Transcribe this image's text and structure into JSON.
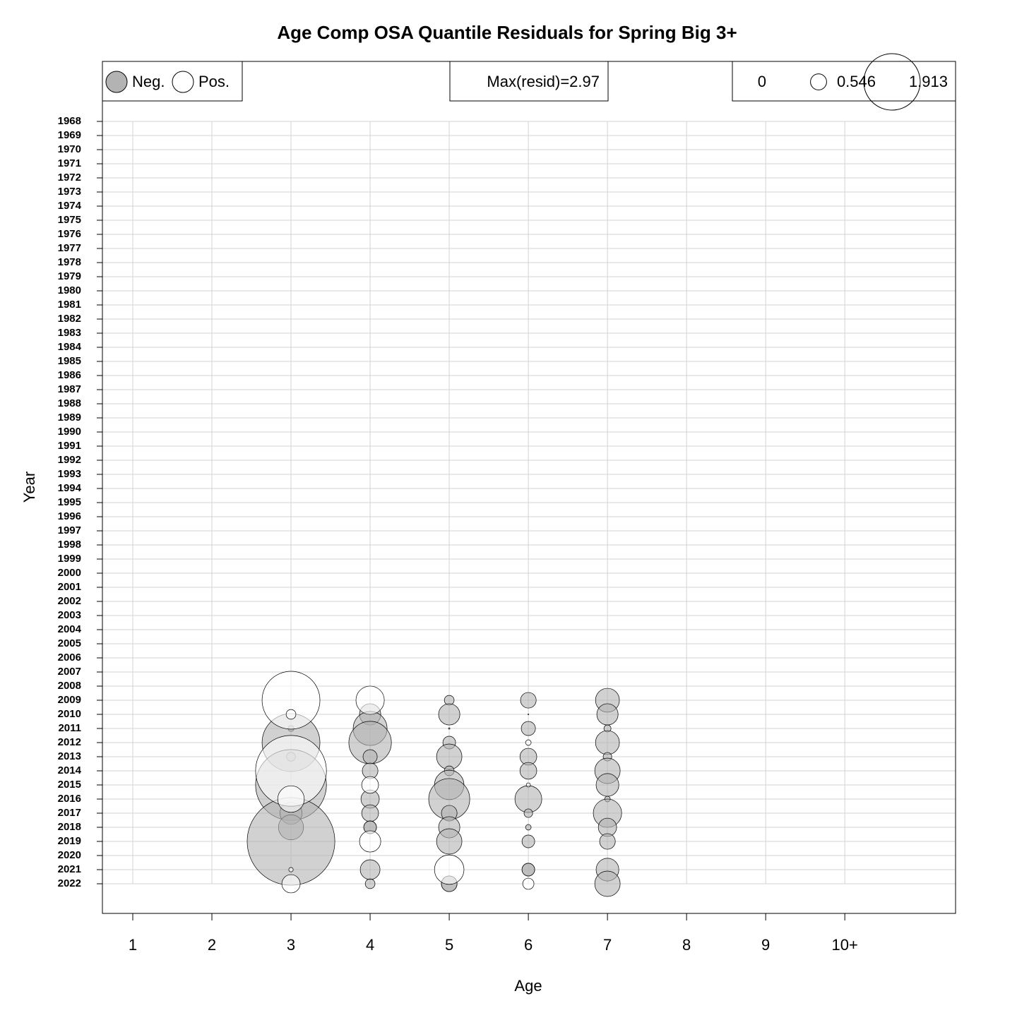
{
  "chart_data": {
    "type": "bubble",
    "title": "Age Comp OSA Quantile Residuals for Spring Big 3+",
    "x_label": "Age",
    "y_label": "Year",
    "xlim": [
      0.616,
      11.4
    ],
    "xticks": [
      1,
      2,
      3,
      4,
      5,
      6,
      7,
      8,
      9,
      {
        "value": 10,
        "label": "10+"
      }
    ],
    "ylim": [
      2024.1,
      1963.75
    ],
    "yticks": [
      1968,
      1969,
      1970,
      1971,
      1972,
      1973,
      1974,
      1975,
      1976,
      1977,
      1978,
      1979,
      1980,
      1981,
      1982,
      1983,
      1984,
      1985,
      1986,
      1987,
      1988,
      1989,
      1990,
      1991,
      1992,
      1993,
      1994,
      1995,
      1996,
      1997,
      1998,
      1999,
      2000,
      2001,
      2002,
      2003,
      2004,
      2005,
      2006,
      2007,
      2008,
      2009,
      2010,
      2011,
      2012,
      2013,
      2014,
      2015,
      2016,
      2017,
      2018,
      2019,
      2020,
      2021,
      2022
    ],
    "grid": true,
    "max_label": "Max(resid)=2.97",
    "size_legend": [
      0,
      0.546,
      1.913
    ],
    "series": [
      {
        "name": "Neg.",
        "color": "#b3b3b3",
        "x": [
          3,
          3,
          3,
          3,
          3,
          3,
          3,
          4,
          4,
          4,
          4,
          4,
          4,
          4,
          4,
          4,
          4,
          4,
          5,
          5,
          5,
          5,
          5,
          5,
          5,
          5,
          5,
          5,
          5,
          5,
          5,
          6,
          6,
          6,
          6,
          6,
          6,
          6,
          6,
          6,
          6,
          6,
          7,
          7,
          7,
          7,
          7,
          7,
          7,
          7,
          7,
          7,
          7,
          7,
          7
        ],
        "y": [
          2011,
          2012,
          2013,
          2015,
          2017,
          2018,
          2019,
          2010,
          2011,
          2012,
          2013,
          2014,
          2016,
          2017,
          2018,
          2021,
          2022,
          2018,
          2009,
          2010,
          2011,
          2012,
          2013,
          2014,
          2015,
          2016,
          2017,
          2018,
          2019,
          2022,
          2022,
          2009,
          2010,
          2011,
          2013,
          2014,
          2016,
          2017,
          2018,
          2019,
          2021,
          2021,
          2009,
          2010,
          2011,
          2012,
          2013,
          2014,
          2015,
          2016,
          2017,
          2018,
          2019,
          2021,
          2022
        ],
        "values": [
          -0.2,
          -1.96,
          -0.3,
          -2.4,
          -0.75,
          -0.85,
          -2.97,
          -0.72,
          -1.15,
          -1.44,
          -0.48,
          -0.53,
          -0.62,
          -0.57,
          -0.43,
          -0.67,
          -0.33,
          -0.43,
          -0.33,
          -0.72,
          -0.05,
          -0.43,
          -0.86,
          -0.33,
          -1.0,
          -1.39,
          -0.53,
          -0.72,
          -0.86,
          -0.53,
          -0.53,
          -0.53,
          -0.03,
          -0.48,
          -0.57,
          -0.57,
          -0.91,
          -0.29,
          -0.19,
          -0.43,
          -0.43,
          -0.43,
          -0.81,
          -0.72,
          -0.24,
          -0.81,
          -0.29,
          -0.86,
          -0.77,
          -0.19,
          -0.96,
          -0.62,
          -0.53,
          -0.77,
          -0.86
        ]
      },
      {
        "name": "Pos.",
        "color": "#ffffff",
        "x": [
          3,
          3,
          3,
          3,
          3,
          3,
          4,
          4,
          4,
          5,
          6,
          6,
          6
        ],
        "y": [
          2009,
          2010,
          2014,
          2016,
          2021,
          2022,
          2009,
          2015,
          2019,
          2021,
          2012,
          2015,
          2022
        ],
        "values": [
          1.96,
          0.33,
          2.4,
          0.9,
          0.15,
          0.62,
          0.96,
          0.57,
          0.72,
          1.0,
          0.19,
          0.14,
          0.38
        ]
      }
    ]
  }
}
